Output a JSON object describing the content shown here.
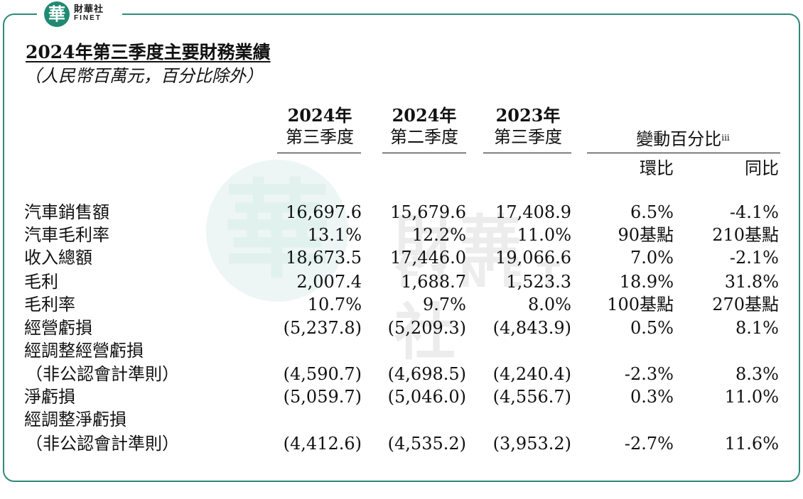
{
  "logo": {
    "mark": "華",
    "cn": "財華社",
    "en": "FINET"
  },
  "watermark": {
    "mark": "華",
    "cn": "財華社",
    "en": "FINET"
  },
  "title": "2024年第三季度主要財務業績",
  "subtitle": "（人民幣百萬元，百分比除外）",
  "columns": [
    {
      "year": "2024年",
      "quarter": "第三季度"
    },
    {
      "year": "2024年",
      "quarter": "第二季度"
    },
    {
      "year": "2023年",
      "quarter": "第三季度"
    }
  ],
  "change_header": {
    "label": "變動百分比",
    "note": "iii",
    "sub": [
      "環比",
      "同比"
    ]
  },
  "rows": [
    {
      "label": "汽車銷售額",
      "values": [
        "16,697.6",
        "15,679.6",
        "17,408.9",
        "6.5%",
        "-4.1%"
      ]
    },
    {
      "label": "汽車毛利率",
      "values": [
        "13.1%",
        "12.2%",
        "11.0%",
        "90基點",
        "210基點"
      ]
    },
    {
      "label": "收入總額",
      "values": [
        "18,673.5",
        "17,446.0",
        "19,066.6",
        "7.0%",
        "-2.1%"
      ]
    },
    {
      "label": "毛利",
      "values": [
        "2,007.4",
        "1,688.7",
        "1,523.3",
        "18.9%",
        "31.8%"
      ]
    },
    {
      "label": "毛利率",
      "values": [
        "10.7%",
        "9.7%",
        "8.0%",
        "100基點",
        "270基點"
      ]
    },
    {
      "label": "經營虧損",
      "values": [
        "(5,237.8)",
        "(5,209.3)",
        "(4,843.9)",
        "0.5%",
        "8.1%"
      ]
    },
    {
      "label": "經調整經營虧損",
      "values": [
        "",
        "",
        "",
        "",
        ""
      ]
    },
    {
      "label": "（非公認會計準則）",
      "values": [
        "(4,590.7)",
        "(4,698.5)",
        "(4,240.4)",
        "-2.3%",
        "8.3%"
      ]
    },
    {
      "label": "淨虧損",
      "values": [
        "(5,059.7)",
        "(5,046.0)",
        "(4,556.7)",
        "0.3%",
        "11.0%"
      ]
    },
    {
      "label": "經調整淨虧損",
      "values": [
        "",
        "",
        "",
        "",
        ""
      ]
    },
    {
      "label": "（非公認會計準則）",
      "values": [
        "(4,412.6)",
        "(4,535.2)",
        "(3,953.2)",
        "-2.7%",
        "11.6%"
      ]
    }
  ]
}
